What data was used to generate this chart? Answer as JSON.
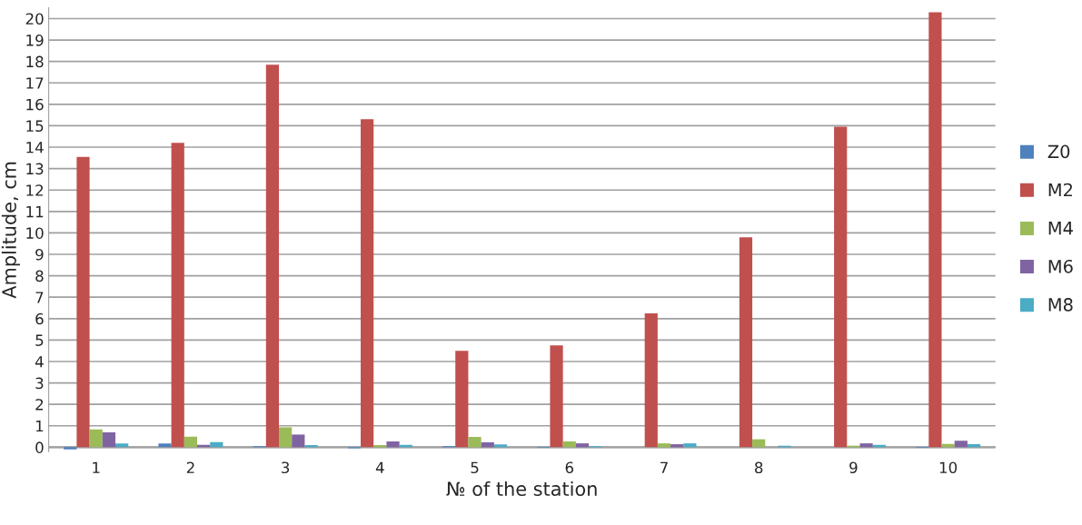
{
  "chart_data": {
    "type": "bar",
    "xlabel": "№ of the station",
    "ylabel": "Amplitude, cm",
    "categories": [
      "1",
      "2",
      "3",
      "4",
      "5",
      "6",
      "7",
      "8",
      "9",
      "10"
    ],
    "series": [
      {
        "name": "Z0",
        "color": "#4f81bd",
        "values": [
          -0.1,
          0.17,
          0.05,
          -0.05,
          0.05,
          -0.03,
          null,
          null,
          null,
          -0.03
        ]
      },
      {
        "name": "M2",
        "color": "#c0504d",
        "values": [
          13.55,
          14.2,
          17.85,
          15.3,
          4.5,
          4.75,
          6.25,
          9.8,
          14.95,
          20.3
        ]
      },
      {
        "name": "M4",
        "color": "#9bbb59",
        "values": [
          0.83,
          0.49,
          0.93,
          0.1,
          0.48,
          0.27,
          0.18,
          0.37,
          0.07,
          0.15
        ]
      },
      {
        "name": "M6",
        "color": "#8064a2",
        "values": [
          0.69,
          0.11,
          0.59,
          0.27,
          0.23,
          0.18,
          0.14,
          null,
          0.18,
          0.3
        ]
      },
      {
        "name": "M8",
        "color": "#4bacc6",
        "values": [
          0.17,
          0.24,
          0.1,
          0.11,
          0.13,
          0.05,
          0.18,
          0.07,
          0.11,
          0.14
        ]
      }
    ],
    "ylim": [
      -0.2,
      20.5
    ],
    "yticks": [
      0,
      1,
      2,
      3,
      4,
      5,
      6,
      7,
      8,
      9,
      10,
      11,
      12,
      13,
      14,
      15,
      16,
      17,
      18,
      19,
      20
    ],
    "grid": "y",
    "legend": "right"
  }
}
